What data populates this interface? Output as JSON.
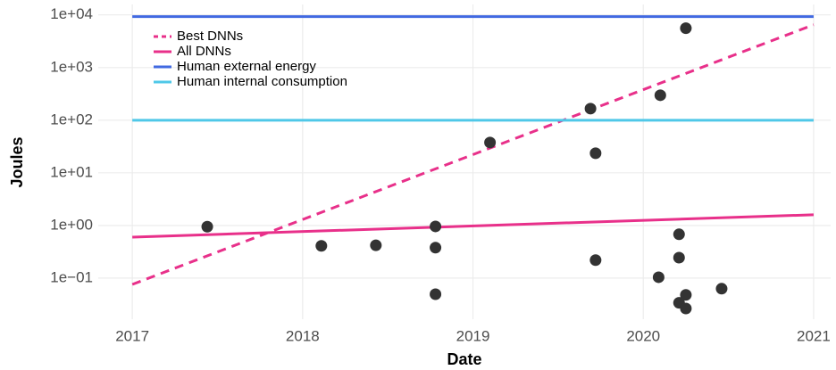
{
  "chart_data": {
    "type": "scatter",
    "xlabel": "Date",
    "ylabel": "Joules",
    "log_y": true,
    "grid": true,
    "legend": "top-left",
    "xlim": [
      2016.8,
      2021.1
    ],
    "xticks": [
      2017,
      2018,
      2019,
      2020,
      2021
    ],
    "ylim": [
      0.0166,
      15800
    ],
    "yticks": [
      {
        "value": 0.1,
        "label": "1e−01"
      },
      {
        "value": 1,
        "label": "1e+00"
      },
      {
        "value": 10,
        "label": "1e+01"
      },
      {
        "value": 100,
        "label": "1e+02"
      },
      {
        "value": 1000,
        "label": "1e+03"
      },
      {
        "value": 10000,
        "label": "1e+04"
      }
    ],
    "points": {
      "color": "#333333",
      "x": [
        2017.44,
        2018.11,
        2018.43,
        2018.78,
        2018.78,
        2018.78,
        2019.1,
        2019.69,
        2019.72,
        2019.72,
        2020.1,
        2020.25,
        2020.09,
        2020.21,
        2020.21,
        2020.21,
        2020.25,
        2020.25,
        2020.46
      ],
      "values": [
        0.95,
        0.41,
        0.42,
        0.96,
        0.38,
        0.0495,
        37.7,
        166,
        23.6,
        0.22,
        298,
        5600,
        0.104,
        0.68,
        0.245,
        0.034,
        0.048,
        0.0265,
        0.063
      ]
    },
    "series": [
      {
        "name": "Best DNNs",
        "color": "#e8308a",
        "line_style": "dashed",
        "x": [
          2017,
          2021
        ],
        "values": [
          0.076,
          6500
        ]
      },
      {
        "name": "All DNNs",
        "color": "#e8308a",
        "line_style": "solid",
        "x": [
          2017,
          2021
        ],
        "values": [
          0.6,
          1.6
        ]
      },
      {
        "name": "Human external energy",
        "color": "#4169e1",
        "line_style": "solid",
        "x": [
          2017,
          2021
        ],
        "values": [
          9300,
          9300
        ]
      },
      {
        "name": "Human internal consumption",
        "color": "#4fc8e8",
        "line_style": "solid",
        "x": [
          2017,
          2021
        ],
        "values": [
          100,
          100
        ]
      }
    ]
  }
}
